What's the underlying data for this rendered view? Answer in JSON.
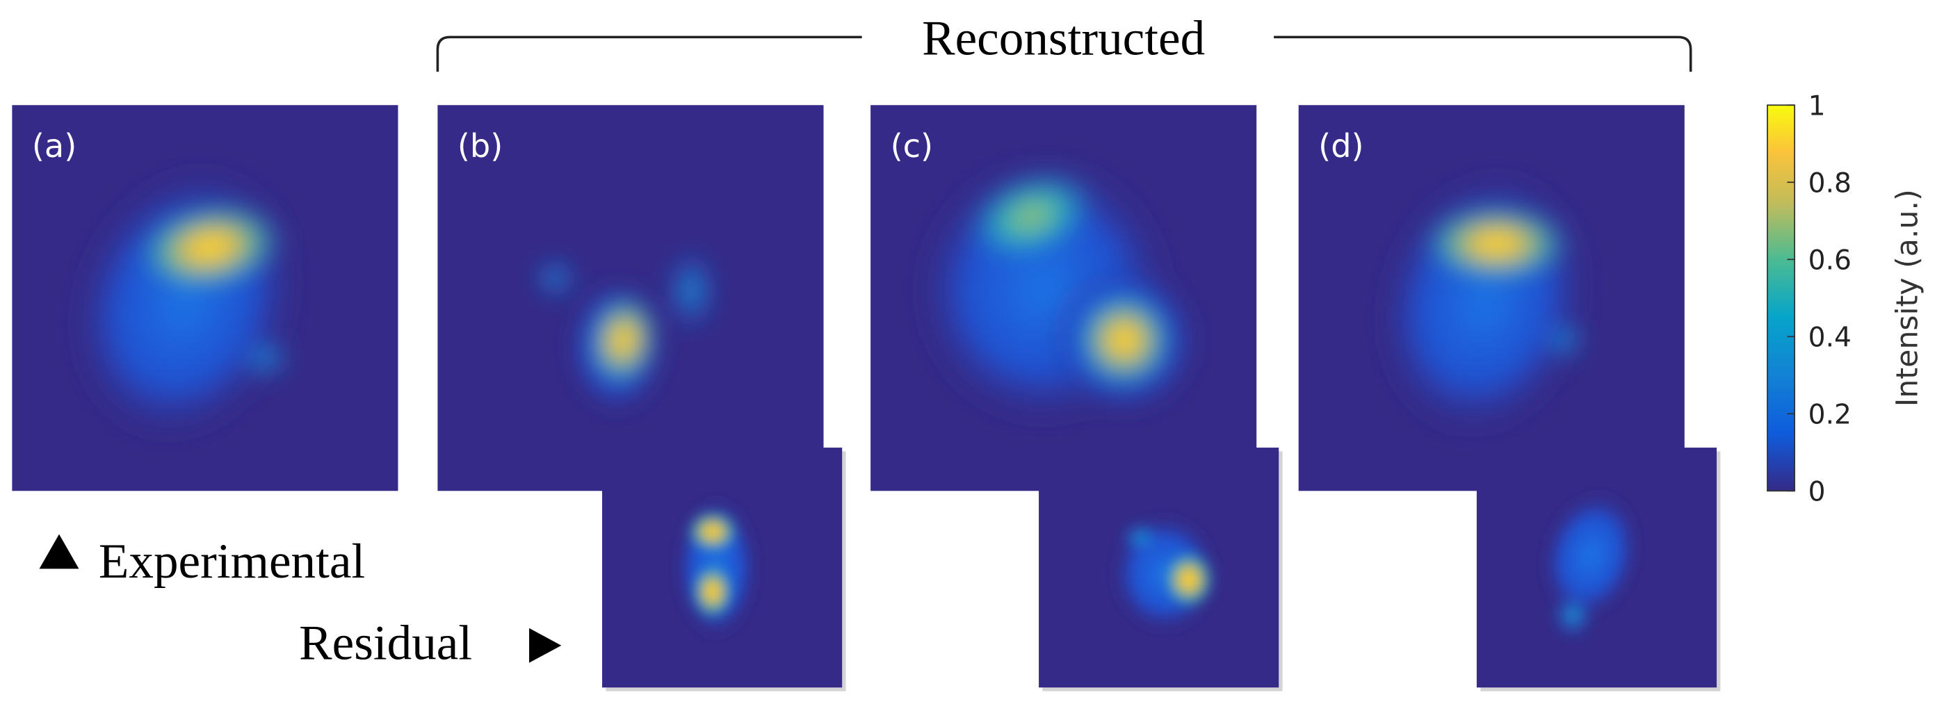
{
  "header": "Reconstructed",
  "panels": [
    {
      "label": "(a)"
    },
    {
      "label": "(b)"
    },
    {
      "label": "(c)"
    },
    {
      "label": "(d)"
    }
  ],
  "labels": {
    "experimental": "Experimental",
    "residual": "Residual"
  },
  "colorbar": {
    "title": "Intensity (a.u.)",
    "lim": [
      0,
      1
    ],
    "ticks": [
      0,
      0.2,
      0.4,
      0.6,
      0.8,
      1
    ]
  }
}
